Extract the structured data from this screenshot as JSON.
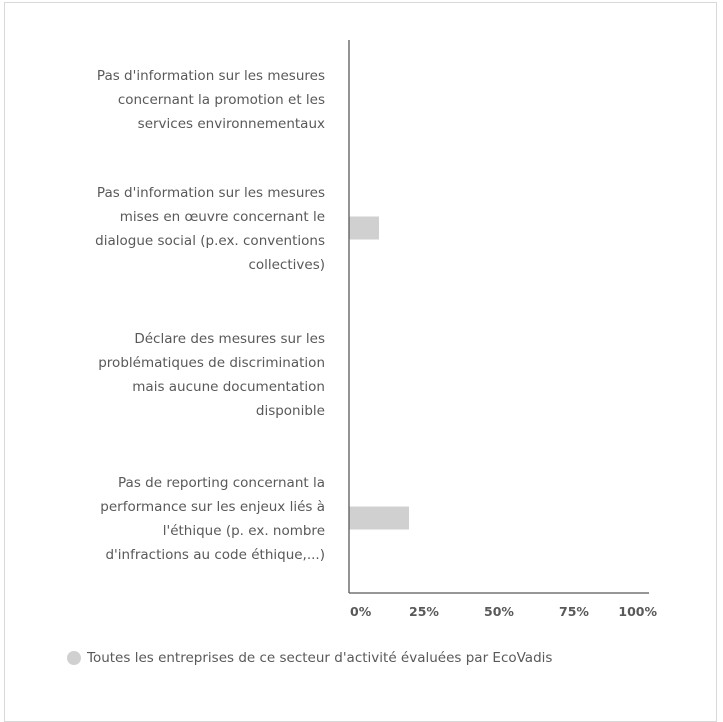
{
  "chart_data": {
    "type": "bar",
    "orientation": "horizontal",
    "categories": [
      [
        "Pas d'information sur les mesures",
        "concernant la promotion et les",
        "services environnementaux"
      ],
      [
        "Pas d'information sur les mesures",
        "mises en œuvre concernant le",
        "dialogue social (p.ex. conventions",
        "collectives)"
      ],
      [
        "Déclare des mesures sur les",
        "problématiques de discrimination",
        "mais aucune documentation",
        "disponible"
      ],
      [
        "Pas de reporting concernant la",
        "performance sur les enjeux liés à",
        "l'éthique (p. ex. nombre",
        "d'infractions au code éthique,...)"
      ]
    ],
    "series": [
      {
        "name": "Toutes les entreprises de ce secteur d'activité évaluées par EcoVadis",
        "values": [
          0,
          10,
          0,
          20
        ],
        "color": "#d0d0d0"
      }
    ],
    "xlim": [
      0,
      100
    ],
    "xticks": [
      0,
      25,
      50,
      75,
      100
    ],
    "xtick_labels": [
      "0%",
      "25%",
      "50%",
      "75%",
      "100%"
    ],
    "xlabel": "",
    "ylabel": "",
    "grid": false,
    "legend_position": "bottom"
  },
  "colors": {
    "axis": "#595959",
    "bar": "#d0d0d0",
    "text": "#595959"
  }
}
